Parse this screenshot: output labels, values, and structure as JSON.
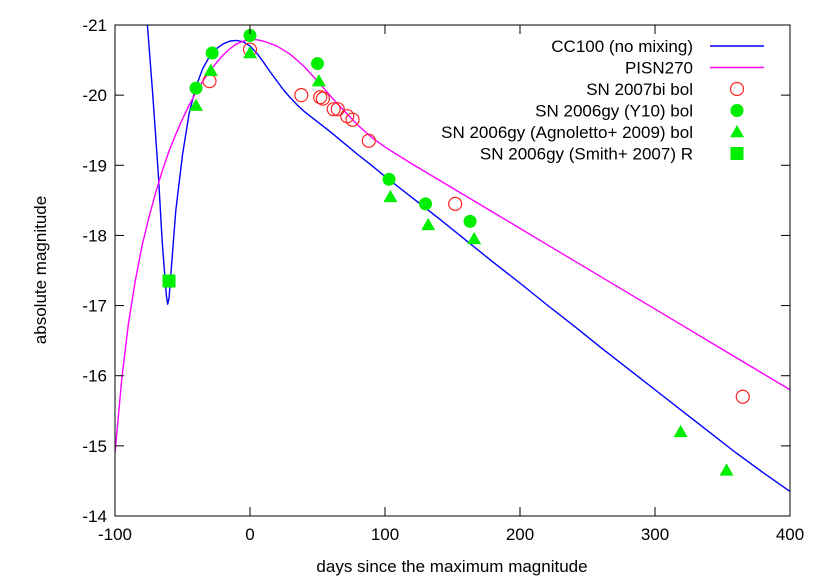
{
  "chart_data": {
    "type": "scatter",
    "xlabel": "days since the maximum magnitude",
    "ylabel": "absolute magnitude",
    "xlim": [
      -100,
      400
    ],
    "ylim": [
      -14,
      -21
    ],
    "y_inverted": true,
    "grid": false,
    "legend_position": "top-right",
    "x_ticks": [
      -100,
      0,
      100,
      200,
      300,
      400
    ],
    "y_ticks": [
      -21,
      -20,
      -19,
      -18,
      -17,
      -16,
      -15,
      -14
    ],
    "series": [
      {
        "name": "CC100 (no mixing)",
        "kind": "line",
        "color": "#0000ff",
        "x": [
          -76,
          -72,
          -68,
          -65,
          -62,
          -61,
          -60,
          -58,
          -55,
          -50,
          -45,
          -40,
          -35,
          -30,
          -25,
          -20,
          -15,
          -10,
          -5,
          0,
          5,
          10,
          15,
          20,
          25,
          30,
          35,
          40,
          50,
          60,
          70,
          80,
          90,
          100,
          120,
          140,
          160,
          180,
          200,
          220,
          240,
          260,
          280,
          300,
          320,
          340,
          360,
          380,
          400
        ],
        "y": [
          -21.0,
          -20.0,
          -18.9,
          -17.9,
          -17.15,
          -17.02,
          -17.1,
          -17.6,
          -18.35,
          -19.15,
          -19.75,
          -20.12,
          -20.38,
          -20.55,
          -20.66,
          -20.73,
          -20.77,
          -20.78,
          -20.76,
          -20.7,
          -20.6,
          -20.47,
          -20.33,
          -20.2,
          -20.07,
          -19.96,
          -19.86,
          -19.77,
          -19.62,
          -19.47,
          -19.31,
          -19.15,
          -19.0,
          -18.84,
          -18.54,
          -18.24,
          -17.93,
          -17.62,
          -17.32,
          -17.01,
          -16.71,
          -16.4,
          -16.1,
          -15.8,
          -15.5,
          -15.2,
          -14.9,
          -14.62,
          -14.35
        ]
      },
      {
        "name": "PISN270",
        "kind": "line",
        "color": "#ff00ff",
        "x": [
          -100,
          -95,
          -90,
          -85,
          -80,
          -75,
          -70,
          -65,
          -60,
          -55,
          -50,
          -45,
          -40,
          -35,
          -30,
          -25,
          -20,
          -15,
          -10,
          -5,
          0,
          5,
          10,
          20,
          30,
          40,
          50,
          60,
          70,
          80,
          90,
          100,
          110,
          120,
          140,
          160,
          180,
          200,
          220,
          240,
          260,
          280,
          300,
          320,
          340,
          360,
          380,
          400
        ],
        "y": [
          -14.9,
          -15.95,
          -16.75,
          -17.35,
          -17.85,
          -18.25,
          -18.6,
          -18.92,
          -19.2,
          -19.44,
          -19.66,
          -19.86,
          -20.04,
          -20.2,
          -20.34,
          -20.46,
          -20.57,
          -20.66,
          -20.73,
          -20.77,
          -20.79,
          -20.79,
          -20.77,
          -20.7,
          -20.58,
          -20.41,
          -20.2,
          -19.98,
          -19.77,
          -19.57,
          -19.4,
          -19.26,
          -19.14,
          -19.02,
          -18.79,
          -18.56,
          -18.33,
          -18.1,
          -17.87,
          -17.64,
          -17.41,
          -17.18,
          -16.95,
          -16.72,
          -16.49,
          -16.26,
          -16.03,
          -15.8
        ]
      },
      {
        "name": "SN 2007bi bol",
        "kind": "open-circle",
        "color": "#ff2222",
        "x": [
          -30,
          0,
          38,
          52,
          54,
          62,
          65,
          72,
          76,
          88,
          152,
          365
        ],
        "y": [
          -20.2,
          -20.65,
          -20.0,
          -19.97,
          -19.95,
          -19.8,
          -19.8,
          -19.7,
          -19.65,
          -19.35,
          -18.45,
          -15.7
        ]
      },
      {
        "name": "SN 2006gy (Y10) bol",
        "kind": "filled-circle",
        "color": "#00ee00",
        "x": [
          -40,
          -28,
          0,
          50,
          103,
          130,
          163
        ],
        "y": [
          -20.1,
          -20.6,
          -20.85,
          -20.45,
          -18.8,
          -18.45,
          -18.2
        ]
      },
      {
        "name": "SN 2006gy (Agnoletto+ 2009) bol",
        "kind": "triangle",
        "color": "#00ee00",
        "x": [
          -40,
          -29,
          0,
          51,
          104,
          132,
          166,
          319,
          353
        ],
        "y": [
          -19.85,
          -20.35,
          -20.6,
          -20.2,
          -18.55,
          -18.15,
          -17.95,
          -15.2,
          -14.65
        ]
      },
      {
        "name": "SN 2006gy (Smith+ 2007) R",
        "kind": "square",
        "color": "#00ee00",
        "x": [
          -60
        ],
        "y": [
          -17.35
        ]
      }
    ]
  }
}
